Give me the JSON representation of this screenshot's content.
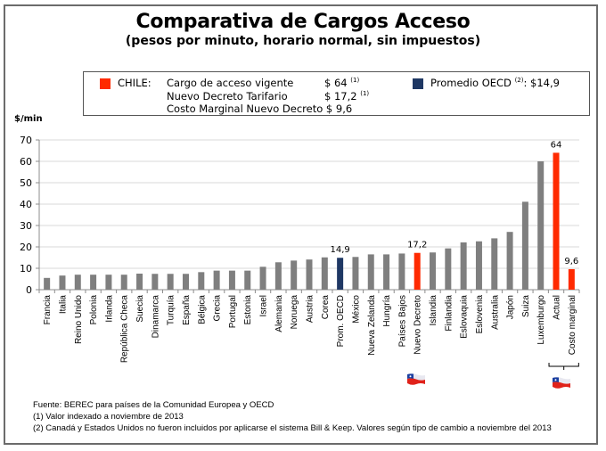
{
  "chart_data": {
    "type": "bar",
    "title": "Comparativa de Cargos Acceso",
    "subtitle": "(pesos por minuto, horario normal, sin impuestos)",
    "ylabel": "$/min",
    "xlabel": "",
    "ylim": [
      0,
      70
    ],
    "yticks": [
      "0",
      "10",
      "20",
      "30",
      "40",
      "50",
      "60",
      "70"
    ],
    "grid": true,
    "categories": [
      "Francia",
      "Italia",
      "Reino Unido",
      "Polonia",
      "Irlanda",
      "República Checa",
      "Suecia",
      "Dinamarca",
      "Turquía",
      "España",
      "Bélgica",
      "Grecia",
      "Portugal",
      "Estonia",
      "Israel",
      "Alemania",
      "Noruega",
      "Austria",
      "Corea",
      "Prom. OECD",
      "México",
      "Nueva Zelanda",
      "Hungría",
      "Países Bajos",
      "Nuevo Decreto",
      "Islandia",
      "Finlandia",
      "Eslovaquia",
      "Eslovenia",
      "Australia",
      "Japón",
      "Suiza",
      "Luxemburgo",
      "Actual",
      "Costo marginal"
    ],
    "values": [
      5.5,
      6.6,
      7.0,
      7.0,
      7.0,
      7.0,
      7.5,
      7.4,
      7.4,
      7.4,
      8.2,
      8.9,
      8.9,
      8.9,
      10.7,
      12.8,
      13.6,
      14.1,
      15.1,
      14.9,
      15.3,
      16.5,
      16.5,
      16.9,
      17.2,
      17.4,
      19.3,
      22.1,
      22.6,
      24.0,
      27.0,
      41.1,
      60.0,
      64.0,
      9.6
    ],
    "bar_colors": [
      "gray",
      "gray",
      "gray",
      "gray",
      "gray",
      "gray",
      "gray",
      "gray",
      "gray",
      "gray",
      "gray",
      "gray",
      "gray",
      "gray",
      "gray",
      "gray",
      "gray",
      "gray",
      "gray",
      "navy",
      "gray",
      "gray",
      "gray",
      "gray",
      "red",
      "gray",
      "gray",
      "gray",
      "gray",
      "gray",
      "gray",
      "gray",
      "gray",
      "red",
      "red"
    ],
    "data_labels": [
      {
        "category": "Prom. OECD",
        "text": "14,9"
      },
      {
        "category": "Nuevo Decreto",
        "text": "17,2"
      },
      {
        "category": "Actual",
        "text": "64"
      },
      {
        "category": "Costo marginal",
        "text": "9,6"
      }
    ],
    "colors": {
      "gray": "#7f7f7f",
      "navy": "#1f3864",
      "red": "#ff2a00",
      "grid": "#d9d9d9",
      "axis": "#8c8c8c"
    },
    "legend": {
      "placement": "top",
      "chile_label": "CHILE:",
      "rows": [
        {
          "label": "Cargo de acceso vigente",
          "value": "$ 64",
          "note": "(1)"
        },
        {
          "label": "Nuevo Decreto Tarifario",
          "value": "$ 17,2",
          "note": "(1)"
        },
        {
          "label": "Costo Marginal Nuevo Decreto",
          "value": "$ 9,6",
          "note": ""
        }
      ],
      "oecd_label": "Promedio  OECD",
      "oecd_note": "(2)",
      "oecd_value": ": $14,9"
    },
    "annotations": {
      "flag_icon": "chile-flag-icon",
      "bracket_under": [
        "Actual",
        "Costo marginal"
      ]
    }
  },
  "footer": {
    "source": "Fuente: BEREC para países de  la Comunidad Europea y  OECD",
    "note1": "(1) Valor indexado a noviembre de 2013",
    "note2": "(2) Canadá y Estados Unidos no fueron incluidos por aplicarse el sistema Bill & Keep. Valores  según tipo de cambio a noviembre del 2013"
  }
}
